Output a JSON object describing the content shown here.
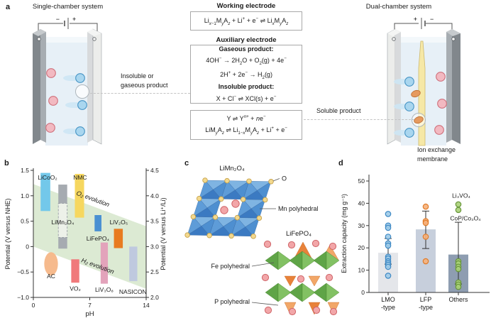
{
  "panel_letters": {
    "a": "a",
    "b": "b",
    "c": "c",
    "d": "d"
  },
  "panel_a": {
    "single_chamber": {
      "title": "Single-chamber system",
      "battery_neg": "−",
      "battery_pos": "+"
    },
    "dual_chamber": {
      "title": "Dual-chamber system",
      "battery_pos": "+",
      "battery_neg": "−",
      "membrane_label_line1": "Ion exchange",
      "membrane_label_line2": "membrane"
    },
    "callout_left_line1": "Insoluble or",
    "callout_left_line2": "gaseous product",
    "callout_right": "Soluble product",
    "working_electrode": {
      "title": "Working electrode",
      "equation": "Li<sub><i>x</i>−1</sub>M<sub><i>y</i></sub>A<sub><i>z</i></sub> + Li<sup>+</sup> + e<sup>−</sup> ⇌ Li<sub><i>x</i></sub>M<sub><i>y</i></sub>A<sub><i>z</i></sub>"
    },
    "auxiliary_electrode": {
      "title": "Auxiliary electrode",
      "gaseous_heading": "Gaseous product:",
      "gaseous_eq1": "4OH<sup>−</sup> → 2H<sub>2</sub>O + O<sub>2</sub>(g) + 4e<sup>−</sup>",
      "gaseous_eq2": "2H<sup>+</sup> + 2e<sup>−</sup> → H<sub>2</sub>(g)",
      "insoluble_heading": "Insoluble product:",
      "insoluble_eq": "X + Cl<sup>−</sup> ⇌ XCl(s) + e<sup>−</sup>"
    },
    "soluble_box": {
      "eq1": "Y ⇌ Y<sup><i>n</i>+</sup> + <i>n</i>e<sup>−</sup>",
      "eq2": "LiM<sub><i>y</i></sub>A<sub><i>z</i></sub> ⇌ Li<sub>1−<i>x</i></sub>M<sub><i>y</i></sub>A<sub><i>z</i></sub> + Li<sup>+</sup> + e<sup>−</sup>"
    }
  },
  "panel_c": {
    "limn2o4_title": "LiMn₂O₄",
    "o_label": "O",
    "mn_label": "Mn polyhedral",
    "lifepo4_title": "LiFePO₄",
    "fe_label": "Fe polyhedral",
    "p_label": "P polyhedral"
  },
  "chart_data": [
    {
      "id": "panel-b-potential-vs-ph",
      "type": "bar",
      "subtype": "floating-range-bars",
      "xlabel": "pH",
      "ylabel_left": "Potential (V versus NHE)",
      "ylabel_right": "Potential (V versus Li⁺/Li)",
      "xlim": [
        0,
        14
      ],
      "ylim_left": [
        -1.0,
        1.5
      ],
      "ylim_right": [
        2.0,
        4.5
      ],
      "xticks": {
        "values": [
          0,
          7,
          14
        ],
        "labels": [
          "0",
          "7",
          "14"
        ]
      },
      "yticks_left": {
        "values": [
          1.5,
          1.0,
          0.5,
          0,
          -0.5,
          -1.0
        ],
        "labels": [
          "1.5",
          "1.0",
          "0.5",
          "0",
          "−0.5",
          "−1.0"
        ]
      },
      "yticks_right": {
        "labels": [
          "4.5",
          "4.0",
          "3.5",
          "3.0",
          "2.5",
          "2.0"
        ]
      },
      "water_window": {
        "fill": "#dcead3",
        "o2_label": "O₂ evolution",
        "o2_v_at_ph0": 1.23,
        "o2_v_at_ph14": 0.4,
        "h2_label": "H₂ evolution",
        "h2_v_at_ph0": 0.0,
        "h2_v_at_ph14": -0.83
      },
      "materials": [
        {
          "label": "LiCoO₂",
          "shape": "bar",
          "ph": [
            0.9,
            2.1
          ],
          "v": [
            0.7,
            1.45
          ],
          "color": "#73c8ea",
          "label_at": [
            0.55,
            1.32
          ],
          "anchor": "start"
        },
        {
          "label": "LiMn₂O₄",
          "shape": "bar",
          "ph": [
            3.1,
            4.2
          ],
          "v": [
            -0.04,
            1.22
          ],
          "color": "#a6abb1",
          "dashed_v": [
            0.18,
            0.85
          ],
          "label_at": [
            3.65,
            0.44
          ],
          "anchor": "middle"
        },
        {
          "label": "NMC",
          "shape": "bar",
          "ph": [
            5.15,
            6.3
          ],
          "v": [
            0.57,
            1.43
          ],
          "color": "#f6d75f",
          "label_at": [
            5.8,
            1.32
          ],
          "anchor": "middle"
        },
        {
          "label": "LiFePO₄",
          "shape": "bar",
          "ph": [
            7.6,
            8.45
          ],
          "v": [
            0.3,
            0.62
          ],
          "color": "#4a90d2",
          "label_at": [
            8.0,
            0.12
          ],
          "anchor": "middle"
        },
        {
          "label": "LiV₂O₅",
          "shape": "bar",
          "ph": [
            10.0,
            11.1
          ],
          "v": [
            -0.03,
            0.35
          ],
          "color": "#e87b20",
          "label_at": [
            10.6,
            0.44
          ],
          "anchor": "middle"
        },
        {
          "label": "AC",
          "shape": "ellipse",
          "ph": [
            1.35,
            3.05
          ],
          "v": [
            -0.57,
            -0.11
          ],
          "color": "#f6ba8d",
          "label_at": [
            2.2,
            -0.62
          ],
          "anchor": "middle"
        },
        {
          "label": "VO₂",
          "shape": "bar",
          "ph": [
            4.7,
            5.7
          ],
          "v": [
            -0.71,
            -0.25
          ],
          "color": "#f0797b",
          "label_at": [
            5.2,
            -0.87
          ],
          "anchor": "middle"
        },
        {
          "label": "LiV₃O₈",
          "shape": "bar",
          "ph": [
            8.35,
            9.25
          ],
          "v": [
            -0.73,
            0.08
          ],
          "color": "#e3a3bb",
          "label_at": [
            8.8,
            -0.89
          ],
          "anchor": "middle"
        },
        {
          "label": "NASICON",
          "shape": "bar",
          "ph": [
            11.9,
            12.9
          ],
          "v": [
            -0.68,
            0.0
          ],
          "color": "#bfc9df",
          "label_at": [
            12.35,
            -0.93
          ],
          "anchor": "middle"
        }
      ]
    },
    {
      "id": "panel-d-extraction-capacity",
      "type": "bar",
      "ylabel": "Extraction capacity (mg g⁻¹)",
      "ylim": [
        0,
        50
      ],
      "yticks": {
        "values": [
          0,
          10,
          20,
          30,
          40,
          50
        ],
        "labels": [
          "0",
          "10",
          "20",
          "30",
          "40",
          "50"
        ]
      },
      "groups": [
        {
          "label_line1": "LMO",
          "label_line2": "-type",
          "bar_value": 17.8,
          "err": [
            12.7,
            24.2
          ],
          "bar_color": "#e4e6ea",
          "dot_fill": "#9fcbe8",
          "dot_stroke": "#3d88c4",
          "points": [
            35.2,
            30,
            29,
            25,
            22,
            21,
            16,
            15.2,
            14,
            13.2,
            12.4,
            11.5,
            7.5
          ]
        },
        {
          "label_line1": "LFP",
          "label_line2": "-type",
          "bar_value": 28.3,
          "err": [
            19.7,
            36.5
          ],
          "bar_color": "#c7cfdc",
          "dot_fill": "#f6b07a",
          "dot_stroke": "#e07b28",
          "points": [
            38.5,
            32,
            31.2,
            25,
            14
          ]
        },
        {
          "label_line1": "Others",
          "label_line2": "",
          "bar_value": 17,
          "err": [
            3.8,
            31.5
          ],
          "bar_color": "#8e9db1",
          "dot_fill": "#a9d077",
          "dot_stroke": "#67953a",
          "points": [
            39.5,
            37,
            14,
            13,
            11.5,
            10.5,
            4.5,
            3.5,
            2.5
          ]
        }
      ],
      "annotations": [
        {
          "text": "Li₃VO₄",
          "group": 2,
          "value": 42.5,
          "dx": 4,
          "anchor": "middle"
        },
        {
          "text": "CoP/Co₃O₄",
          "group": 2,
          "value": 32.3,
          "dx": 10,
          "anchor": "middle"
        }
      ]
    }
  ]
}
